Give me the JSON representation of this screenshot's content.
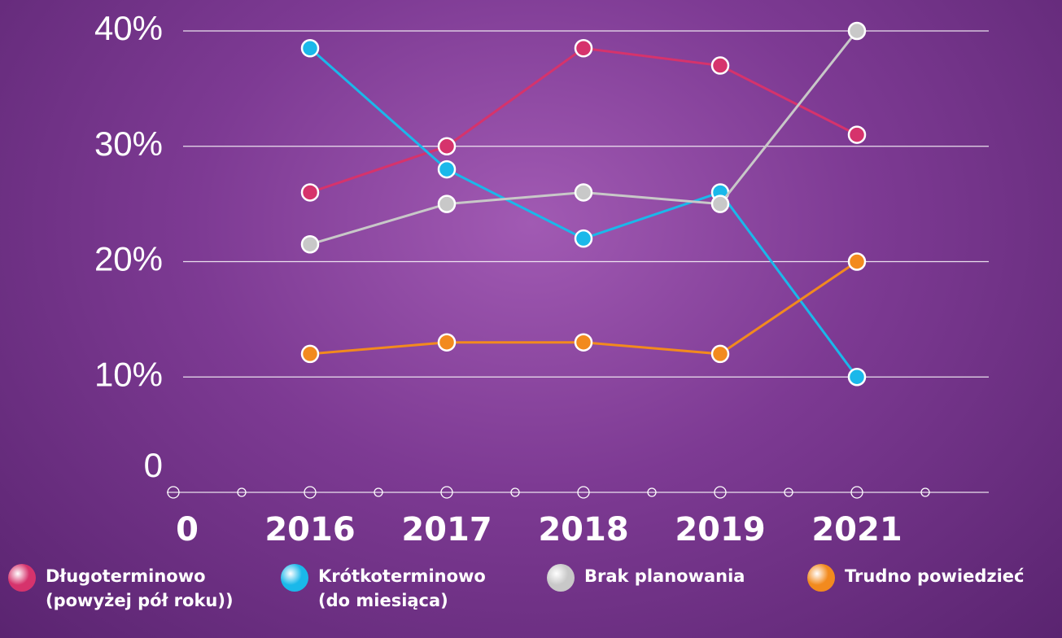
{
  "chart_data": {
    "type": "line",
    "categories": [
      "0",
      "2016",
      "2017",
      "2018",
      "2019",
      "2021"
    ],
    "series": [
      {
        "name": "Długoterminowo\n(powyżej pół roku))",
        "color": "#d6336c",
        "values": [
          null,
          26,
          30,
          38.5,
          37,
          31
        ]
      },
      {
        "name": "Krótkoterminowo\n(do miesiąca)",
        "color": "#1ab8ea",
        "values": [
          null,
          38.5,
          28,
          22,
          26,
          10
        ]
      },
      {
        "name": "Brak planowania",
        "color": "#c8c8c8",
        "values": [
          null,
          21.5,
          25,
          26,
          25,
          40
        ]
      },
      {
        "name": "Trudno powiedzieć",
        "color": "#f28a1e",
        "values": [
          null,
          12,
          13,
          13,
          12,
          20
        ]
      }
    ],
    "ylim": [
      0,
      40
    ],
    "yticks": [
      0,
      {
        "value": 10,
        "label": "10%"
      },
      {
        "value": 20,
        "label": "20%"
      },
      {
        "value": 30,
        "label": "30%"
      },
      {
        "value": 40,
        "label": "40%"
      }
    ],
    "grid": true
  }
}
